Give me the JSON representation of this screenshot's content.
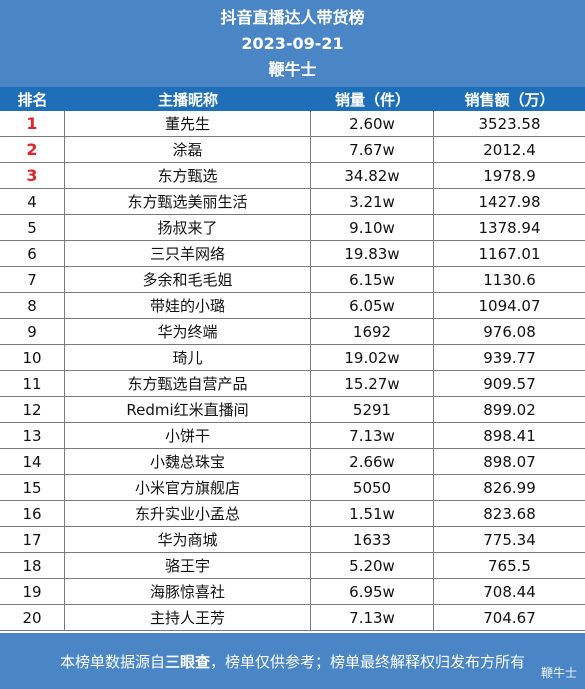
{
  "header": {
    "title": "抖音直播达人带货榜",
    "date": "2023-09-21",
    "brand": "鞭牛士"
  },
  "columns": [
    "排名",
    "主播昵称",
    "销量（件）",
    "销售额（万）"
  ],
  "rows": [
    {
      "rank": "1",
      "name": "董先生",
      "volume": "2.60w",
      "sales": "3523.58"
    },
    {
      "rank": "2",
      "name": "涂磊",
      "volume": "7.67w",
      "sales": "2012.4"
    },
    {
      "rank": "3",
      "name": "东方甄选",
      "volume": "34.82w",
      "sales": "1978.9"
    },
    {
      "rank": "4",
      "name": "东方甄选美丽生活",
      "volume": "3.21w",
      "sales": "1427.98"
    },
    {
      "rank": "5",
      "name": "扬叔来了",
      "volume": "9.10w",
      "sales": "1378.94"
    },
    {
      "rank": "6",
      "name": "三只羊网络",
      "volume": "19.83w",
      "sales": "1167.01"
    },
    {
      "rank": "7",
      "name": "多余和毛毛姐",
      "volume": "6.15w",
      "sales": "1130.6"
    },
    {
      "rank": "8",
      "name": "带娃的小璐",
      "volume": "6.05w",
      "sales": "1094.07"
    },
    {
      "rank": "9",
      "name": "华为终端",
      "volume": "1692",
      "sales": "976.08"
    },
    {
      "rank": "10",
      "name": "琦儿",
      "volume": "19.02w",
      "sales": "939.77"
    },
    {
      "rank": "11",
      "name": "东方甄选自营产品",
      "volume": "15.27w",
      "sales": "909.57"
    },
    {
      "rank": "12",
      "name": "Redmi红米直播间",
      "volume": "5291",
      "sales": "899.02"
    },
    {
      "rank": "13",
      "name": "小饼干",
      "volume": "7.13w",
      "sales": "898.41"
    },
    {
      "rank": "14",
      "name": "小魏总珠宝",
      "volume": "2.66w",
      "sales": "898.07"
    },
    {
      "rank": "15",
      "name": "小米官方旗舰店",
      "volume": "5050",
      "sales": "826.99"
    },
    {
      "rank": "16",
      "name": "东升实业小孟总",
      "volume": "1.51w",
      "sales": "823.68"
    },
    {
      "rank": "17",
      "name": "华为商城",
      "volume": "1633",
      "sales": "775.34"
    },
    {
      "rank": "18",
      "name": "骆王宇",
      "volume": "5.20w",
      "sales": "765.5"
    },
    {
      "rank": "19",
      "name": "海豚惊喜社",
      "volume": "6.95w",
      "sales": "708.44"
    },
    {
      "rank": "20",
      "name": "主持人王芳",
      "volume": "7.13w",
      "sales": "704.67"
    }
  ],
  "footer": {
    "prefix": "本榜单数据源自",
    "source": "三眼查",
    "suffix": "，榜单仅供参考；榜单最终解释权归发布方所有",
    "watermark": "鞭牛士"
  },
  "colors": {
    "header_bg": "#4a86c5",
    "colhead_bg": "#1f6fb8",
    "top_rank": "#e3232a"
  }
}
